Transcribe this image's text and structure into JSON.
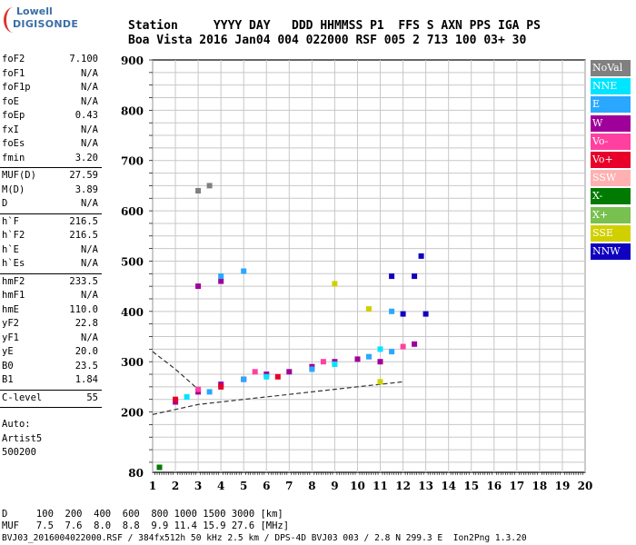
{
  "logo": {
    "brand": "Lowell",
    "product": "DIGISONDE"
  },
  "header": {
    "line1": "Station     YYYY DAY   DDD HHMMSS P1  FFS S AXN PPS IGA PS",
    "line2": "Boa Vista 2016 Jan04 004 022000 RSF 005 2 713 100 03+ 30"
  },
  "params": {
    "group1": [
      {
        "name": "foF2",
        "value": "7.100"
      },
      {
        "name": "foF1",
        "value": "N/A"
      },
      {
        "name": "foF1p",
        "value": "N/A"
      },
      {
        "name": "foE",
        "value": "N/A"
      },
      {
        "name": "foEp",
        "value": "0.43"
      },
      {
        "name": "fxI",
        "value": "N/A"
      },
      {
        "name": "foEs",
        "value": "N/A"
      },
      {
        "name": "fmin",
        "value": "3.20"
      }
    ],
    "group2": [
      {
        "name": "MUF(D)",
        "value": "27.59"
      },
      {
        "name": "M(D)",
        "value": "3.89"
      },
      {
        "name": "D",
        "value": "N/A"
      }
    ],
    "group3": [
      {
        "name": "h`F",
        "value": "216.5"
      },
      {
        "name": "h`F2",
        "value": "216.5"
      },
      {
        "name": "h`E",
        "value": "N/A"
      },
      {
        "name": "h`Es",
        "value": "N/A"
      }
    ],
    "group4": [
      {
        "name": "hmF2",
        "value": "233.5"
      },
      {
        "name": "hmF1",
        "value": "N/A"
      },
      {
        "name": "hmE",
        "value": "110.0"
      },
      {
        "name": "yF2",
        "value": "22.8"
      },
      {
        "name": "yF1",
        "value": "N/A"
      },
      {
        "name": "yE",
        "value": "20.0"
      },
      {
        "name": "B0",
        "value": "23.5"
      },
      {
        "name": "B1",
        "value": "1.84"
      }
    ],
    "group5": [
      {
        "name": "C-level",
        "value": "55"
      }
    ]
  },
  "auto": {
    "line1": "Auto:",
    "line2": "Artist5",
    "line3": "500200"
  },
  "legend": [
    {
      "label": "NoVal",
      "color": "#808080"
    },
    {
      "label": "NNE",
      "color": "#00e5ff"
    },
    {
      "label": "E",
      "color": "#2aa8ff"
    },
    {
      "label": "W",
      "color": "#a0009a"
    },
    {
      "label": "Vo-",
      "color": "#ff40a0"
    },
    {
      "label": "Vo+",
      "color": "#e8002a"
    },
    {
      "label": "SSW",
      "color": "#ffb0b0"
    },
    {
      "label": "X-",
      "color": "#007a00"
    },
    {
      "label": "X+",
      "color": "#78c050"
    },
    {
      "label": "SSE",
      "color": "#d0d000"
    },
    {
      "label": "NNW",
      "color": "#1000c0"
    }
  ],
  "footer": {
    "d_line": "D     100  200  400  600  800 1000 1500 3000 [km]",
    "muf_line": "MUF   7.5  7.6  8.0  8.8  9.9 11.4 15.9 27.6 [MHz]",
    "file_line": "BVJ03_2016004022000.RSF / 384fx512h 50 kHz 2.5 km / DPS-4D BVJ03 003 / 2.8 N 299.3 E  Ion2Png 1.3.20"
  },
  "chart_data": {
    "type": "scatter",
    "x_ticks": [
      "1",
      "2",
      "3",
      "4",
      "5",
      "6",
      "7",
      "8",
      "9",
      "10",
      "11",
      "12",
      "13",
      "14",
      "15",
      "16",
      "17",
      "18",
      "19",
      "20"
    ],
    "y_ticks": [
      "80",
      "200",
      "300",
      "400",
      "500",
      "600",
      "700",
      "800",
      "900"
    ],
    "xlim": [
      1,
      20
    ],
    "ylim": [
      80,
      900
    ],
    "grid": true,
    "legend_position": "right",
    "series": [
      {
        "name": "W",
        "points": [
          [
            2.0,
            220
          ],
          [
            3.0,
            240
          ],
          [
            4.0,
            255
          ],
          [
            5.0,
            265
          ],
          [
            6.0,
            275
          ],
          [
            7.0,
            280
          ],
          [
            8.0,
            290
          ],
          [
            9.0,
            300
          ],
          [
            10.0,
            305
          ],
          [
            11.0,
            300
          ],
          [
            3.0,
            450
          ],
          [
            4.0,
            460
          ],
          [
            12.5,
            335
          ]
        ]
      },
      {
        "name": "E",
        "points": [
          [
            3.5,
            240
          ],
          [
            5.0,
            265
          ],
          [
            8.0,
            285
          ],
          [
            10.5,
            310
          ],
          [
            11.5,
            320
          ],
          [
            4.0,
            470
          ],
          [
            5.0,
            480
          ],
          [
            11.5,
            400
          ]
        ]
      },
      {
        "name": "NNE",
        "points": [
          [
            2.5,
            230
          ],
          [
            6.0,
            270
          ],
          [
            9.0,
            295
          ],
          [
            11.0,
            325
          ]
        ]
      },
      {
        "name": "Vo-",
        "points": [
          [
            3.0,
            245
          ],
          [
            5.5,
            280
          ],
          [
            8.5,
            300
          ],
          [
            12.0,
            330
          ]
        ]
      },
      {
        "name": "Vo+",
        "points": [
          [
            2.0,
            225
          ],
          [
            4.0,
            250
          ],
          [
            6.5,
            270
          ]
        ]
      },
      {
        "name": "NNW",
        "points": [
          [
            11.5,
            470
          ],
          [
            12.5,
            470
          ],
          [
            12.0,
            395
          ],
          [
            13.0,
            395
          ],
          [
            12.8,
            510
          ]
        ]
      },
      {
        "name": "SSE",
        "points": [
          [
            10.5,
            405
          ],
          [
            9.0,
            455
          ],
          [
            11.0,
            260
          ]
        ]
      },
      {
        "name": "X-",
        "points": [
          [
            1.3,
            90
          ]
        ]
      },
      {
        "name": "NoVal",
        "points": [
          [
            3.0,
            640
          ],
          [
            3.5,
            650
          ]
        ]
      }
    ],
    "curves": [
      {
        "name": "",
        "style": "dashed",
        "points": [
          [
            1.0,
            320
          ],
          [
            2.0,
            285
          ],
          [
            3.0,
            245
          ]
        ]
      },
      {
        "name": "",
        "style": "dashed",
        "points": [
          [
            1.0,
            195
          ],
          [
            3.0,
            215
          ],
          [
            5.0,
            225
          ],
          [
            7.0,
            235
          ],
          [
            9.0,
            245
          ],
          [
            11.0,
            255
          ],
          [
            12.0,
            260
          ]
        ]
      }
    ]
  }
}
